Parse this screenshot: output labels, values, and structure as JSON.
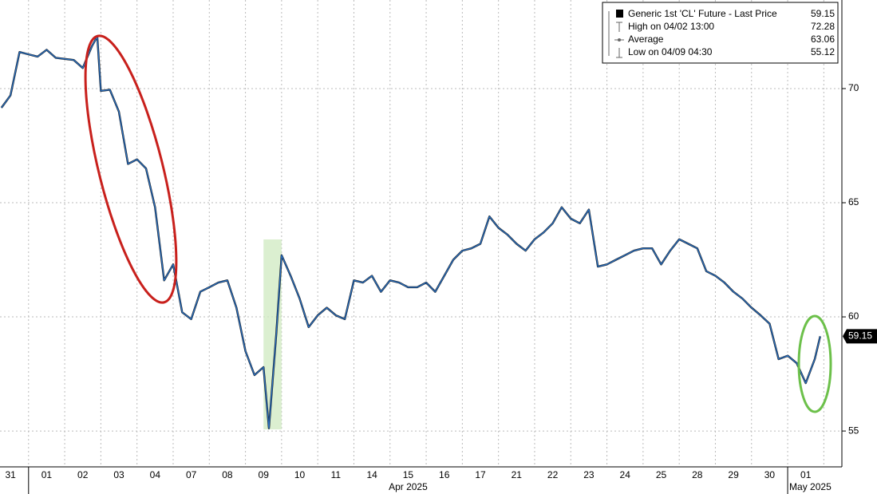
{
  "chart_data": {
    "type": "line",
    "series": [
      {
        "name": "Generic 1st 'CL' Future - Last Price",
        "color": "#2a6ebd",
        "x": [
          -0.25,
          0,
          0.25,
          0.5,
          0.75,
          1,
          1.25,
          1.5,
          1.75,
          2,
          2.25,
          2.4,
          2.5,
          2.75,
          3,
          3.25,
          3.5,
          3.75,
          4,
          4.25,
          4.5,
          4.75,
          5,
          5.25,
          5.5,
          5.75,
          6,
          6.25,
          6.5,
          6.75,
          7,
          7.15,
          7.35,
          7.5,
          7.75,
          8,
          8.25,
          8.5,
          8.75,
          9,
          9.25,
          9.5,
          9.75,
          10,
          10.25,
          10.5,
          10.75,
          11,
          11.25,
          11.5,
          11.75,
          12,
          12.25,
          12.5,
          12.75,
          13,
          13.25,
          13.5,
          13.75,
          14,
          14.25,
          14.5,
          14.75,
          15,
          15.25,
          15.5,
          15.75,
          16,
          16.25,
          16.5,
          16.75,
          17,
          17.25,
          17.5,
          17.75,
          18,
          18.25,
          18.5,
          18.75,
          19,
          19.25,
          19.5,
          19.75,
          20,
          20.25,
          20.5,
          20.75,
          21,
          21.25,
          21.5,
          21.75,
          22,
          22.25,
          22.4
        ],
        "values": [
          69.16,
          69.7,
          71.6,
          71.5,
          71.4,
          71.7,
          71.35,
          71.3,
          71.25,
          70.9,
          71.85,
          72.28,
          69.9,
          69.95,
          68.99,
          66.7,
          66.9,
          66.5,
          64.8,
          61.6,
          62.3,
          60.2,
          59.9,
          61.1,
          61.3,
          61.5,
          61.6,
          60.4,
          58.5,
          57.45,
          57.8,
          55.12,
          59.2,
          62.7,
          61.8,
          60.8,
          59.55,
          60.07,
          60.4,
          60.07,
          59.9,
          61.6,
          61.5,
          61.8,
          61.1,
          61.6,
          61.5,
          61.3,
          61.3,
          61.5,
          61.1,
          61.8,
          62.5,
          62.9,
          63.0,
          63.2,
          64.4,
          63.9,
          63.6,
          63.2,
          62.9,
          63.4,
          63.7,
          64.1,
          64.8,
          64.3,
          64.1,
          64.7,
          62.2,
          62.3,
          62.5,
          62.7,
          62.9,
          63.0,
          63.0,
          62.3,
          62.9,
          63.4,
          63.2,
          63.0,
          62.0,
          61.8,
          61.5,
          61.1,
          60.8,
          60.4,
          60.07,
          59.7,
          58.15,
          58.3,
          57.97,
          57.1,
          58.15,
          59.15
        ]
      }
    ],
    "legend": [
      {
        "label": "Generic 1st 'CL' Future - Last Price",
        "value": 59.15
      },
      {
        "label": "High on 04/02 13:00",
        "value": 72.28
      },
      {
        "label": "Average",
        "value": 63.06
      },
      {
        "label": "Low on 04/09 04:30",
        "value": 55.12
      }
    ],
    "xlim": [
      -0.29,
      23.0
    ],
    "xticks": [
      {
        "value": 0,
        "label": "31"
      },
      {
        "value": 1,
        "label": "01"
      },
      {
        "value": 2,
        "label": "02"
      },
      {
        "value": 3,
        "label": "03"
      },
      {
        "value": 4,
        "label": "04"
      },
      {
        "value": 5,
        "label": "07"
      },
      {
        "value": 6,
        "label": "08"
      },
      {
        "value": 7,
        "label": "09"
      },
      {
        "value": 8,
        "label": "10"
      },
      {
        "value": 9,
        "label": "11"
      },
      {
        "value": 10,
        "label": "14"
      },
      {
        "value": 11,
        "label": "15"
      },
      {
        "value": 12,
        "label": "16"
      },
      {
        "value": 13,
        "label": "17"
      },
      {
        "value": 14,
        "label": "21"
      },
      {
        "value": 15,
        "label": "22"
      },
      {
        "value": 16,
        "label": "23"
      },
      {
        "value": 17,
        "label": "24"
      },
      {
        "value": 18,
        "label": "25"
      },
      {
        "value": 19,
        "label": "28"
      },
      {
        "value": 20,
        "label": "29"
      },
      {
        "value": 21,
        "label": "30"
      },
      {
        "value": 22,
        "label": "01"
      }
    ],
    "months": [
      {
        "label": "Apr 2025",
        "start": 1,
        "end": 21
      },
      {
        "label": "May 2025",
        "start": 22,
        "end": 22
      }
    ],
    "ylim": [
      53.43,
      73.88
    ],
    "yticks": [
      55,
      60,
      65,
      70
    ],
    "highlight": [
      7.0,
      7.5
    ],
    "grid": true
  }
}
